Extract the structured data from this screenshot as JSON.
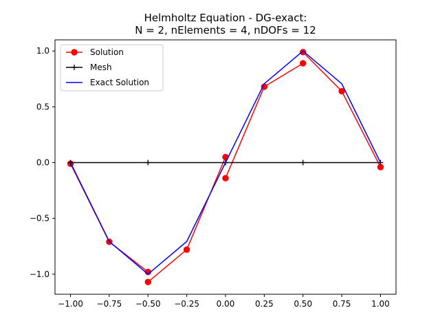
{
  "chart_data": {
    "type": "line",
    "title_line1": "Helmholtz Equation - DG-exact:",
    "title_line2": "N = 2,  nElements = 4,  nDOFs = 12",
    "xlabel": "",
    "ylabel": "",
    "xlim": [
      -1.1,
      1.1
    ],
    "ylim": [
      -1.18,
      1.1
    ],
    "xticks": [
      -1.0,
      -0.75,
      -0.5,
      -0.25,
      0.0,
      0.25,
      0.5,
      0.75,
      1.0
    ],
    "xtick_labels": [
      "−1.00",
      "−0.75",
      "−0.50",
      "−0.25",
      "0.00",
      "0.25",
      "0.50",
      "0.75",
      "1.00"
    ],
    "yticks": [
      -1.0,
      -0.5,
      0.0,
      0.5,
      1.0
    ],
    "ytick_labels": [
      "−1.0",
      "−0.5",
      "0.0",
      "0.5",
      "1.0"
    ],
    "grid": false,
    "legend_position": "top-left",
    "series": [
      {
        "name": "Solution",
        "color": "#ff0000",
        "marker": "circle",
        "segments": [
          {
            "x": [
              -1.0,
              -0.75,
              -0.5
            ],
            "y": [
              -0.01,
              -0.71,
              -0.98
            ]
          },
          {
            "x": [
              -0.5,
              -0.25,
              0.0
            ],
            "y": [
              -1.07,
              -0.78,
              0.05
            ]
          },
          {
            "x": [
              0.0,
              0.25,
              0.5
            ],
            "y": [
              -0.14,
              0.68,
              0.89
            ]
          },
          {
            "x": [
              0.5,
              0.75,
              1.0
            ],
            "y": [
              0.99,
              0.64,
              -0.04
            ]
          }
        ]
      },
      {
        "name": "Mesh",
        "color": "#000000",
        "marker": "plus",
        "segments": [
          {
            "x": [
              -1.0,
              -0.5,
              0.0,
              0.5,
              1.0
            ],
            "y": [
              0,
              0,
              0,
              0,
              0
            ]
          }
        ]
      },
      {
        "name": "Exact Solution",
        "color": "#0000ff",
        "marker": "none",
        "segments": [
          {
            "x": [
              -1.0,
              -0.75,
              -0.5,
              -0.25,
              0.0,
              0.25,
              0.5,
              0.75,
              1.0
            ],
            "y": [
              0.0,
              -0.707,
              -1.0,
              -0.707,
              0.0,
              0.707,
              1.0,
              0.707,
              0.0
            ]
          }
        ]
      }
    ]
  }
}
